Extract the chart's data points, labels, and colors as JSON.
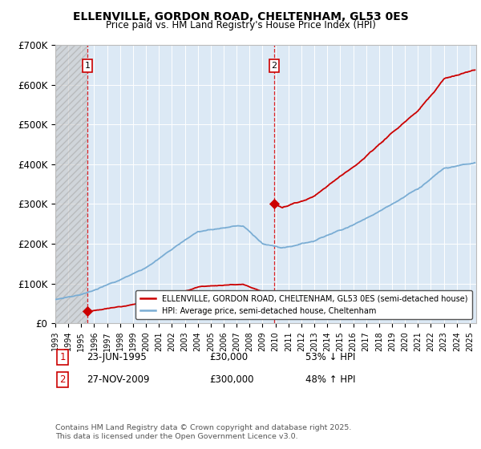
{
  "title1": "ELLENVILLE, GORDON ROAD, CHELTENHAM, GL53 0ES",
  "title2": "Price paid vs. HM Land Registry's House Price Index (HPI)",
  "ylim": [
    0,
    700000
  ],
  "yticks": [
    0,
    100000,
    200000,
    300000,
    400000,
    500000,
    600000,
    700000
  ],
  "ytick_labels": [
    "£0",
    "£100K",
    "£200K",
    "£300K",
    "£400K",
    "£500K",
    "£600K",
    "£700K"
  ],
  "xlim_start": 1993.0,
  "xlim_end": 2025.5,
  "transaction1_year": 1995.47,
  "transaction1_price": 30000,
  "transaction2_year": 2009.9,
  "transaction2_price": 300000,
  "sale_color": "#cc0000",
  "hpi_color": "#7aadd4",
  "plot_bg": "#dce9f5",
  "hatch_color": "#bbbbbb",
  "legend_label1": "ELLENVILLE, GORDON ROAD, CHELTENHAM, GL53 0ES (semi-detached house)",
  "legend_label2": "HPI: Average price, semi-detached house, Cheltenham",
  "footnote": "Contains HM Land Registry data © Crown copyright and database right 2025.\nThis data is licensed under the Open Government Licence v3.0.",
  "annotation1_label": "1",
  "annotation1_date": "23-JUN-1995",
  "annotation1_price": "£30,000",
  "annotation1_hpi": "53% ↓ HPI",
  "annotation2_label": "2",
  "annotation2_date": "27-NOV-2009",
  "annotation2_price": "£300,000",
  "annotation2_hpi": "48% ↑ HPI"
}
